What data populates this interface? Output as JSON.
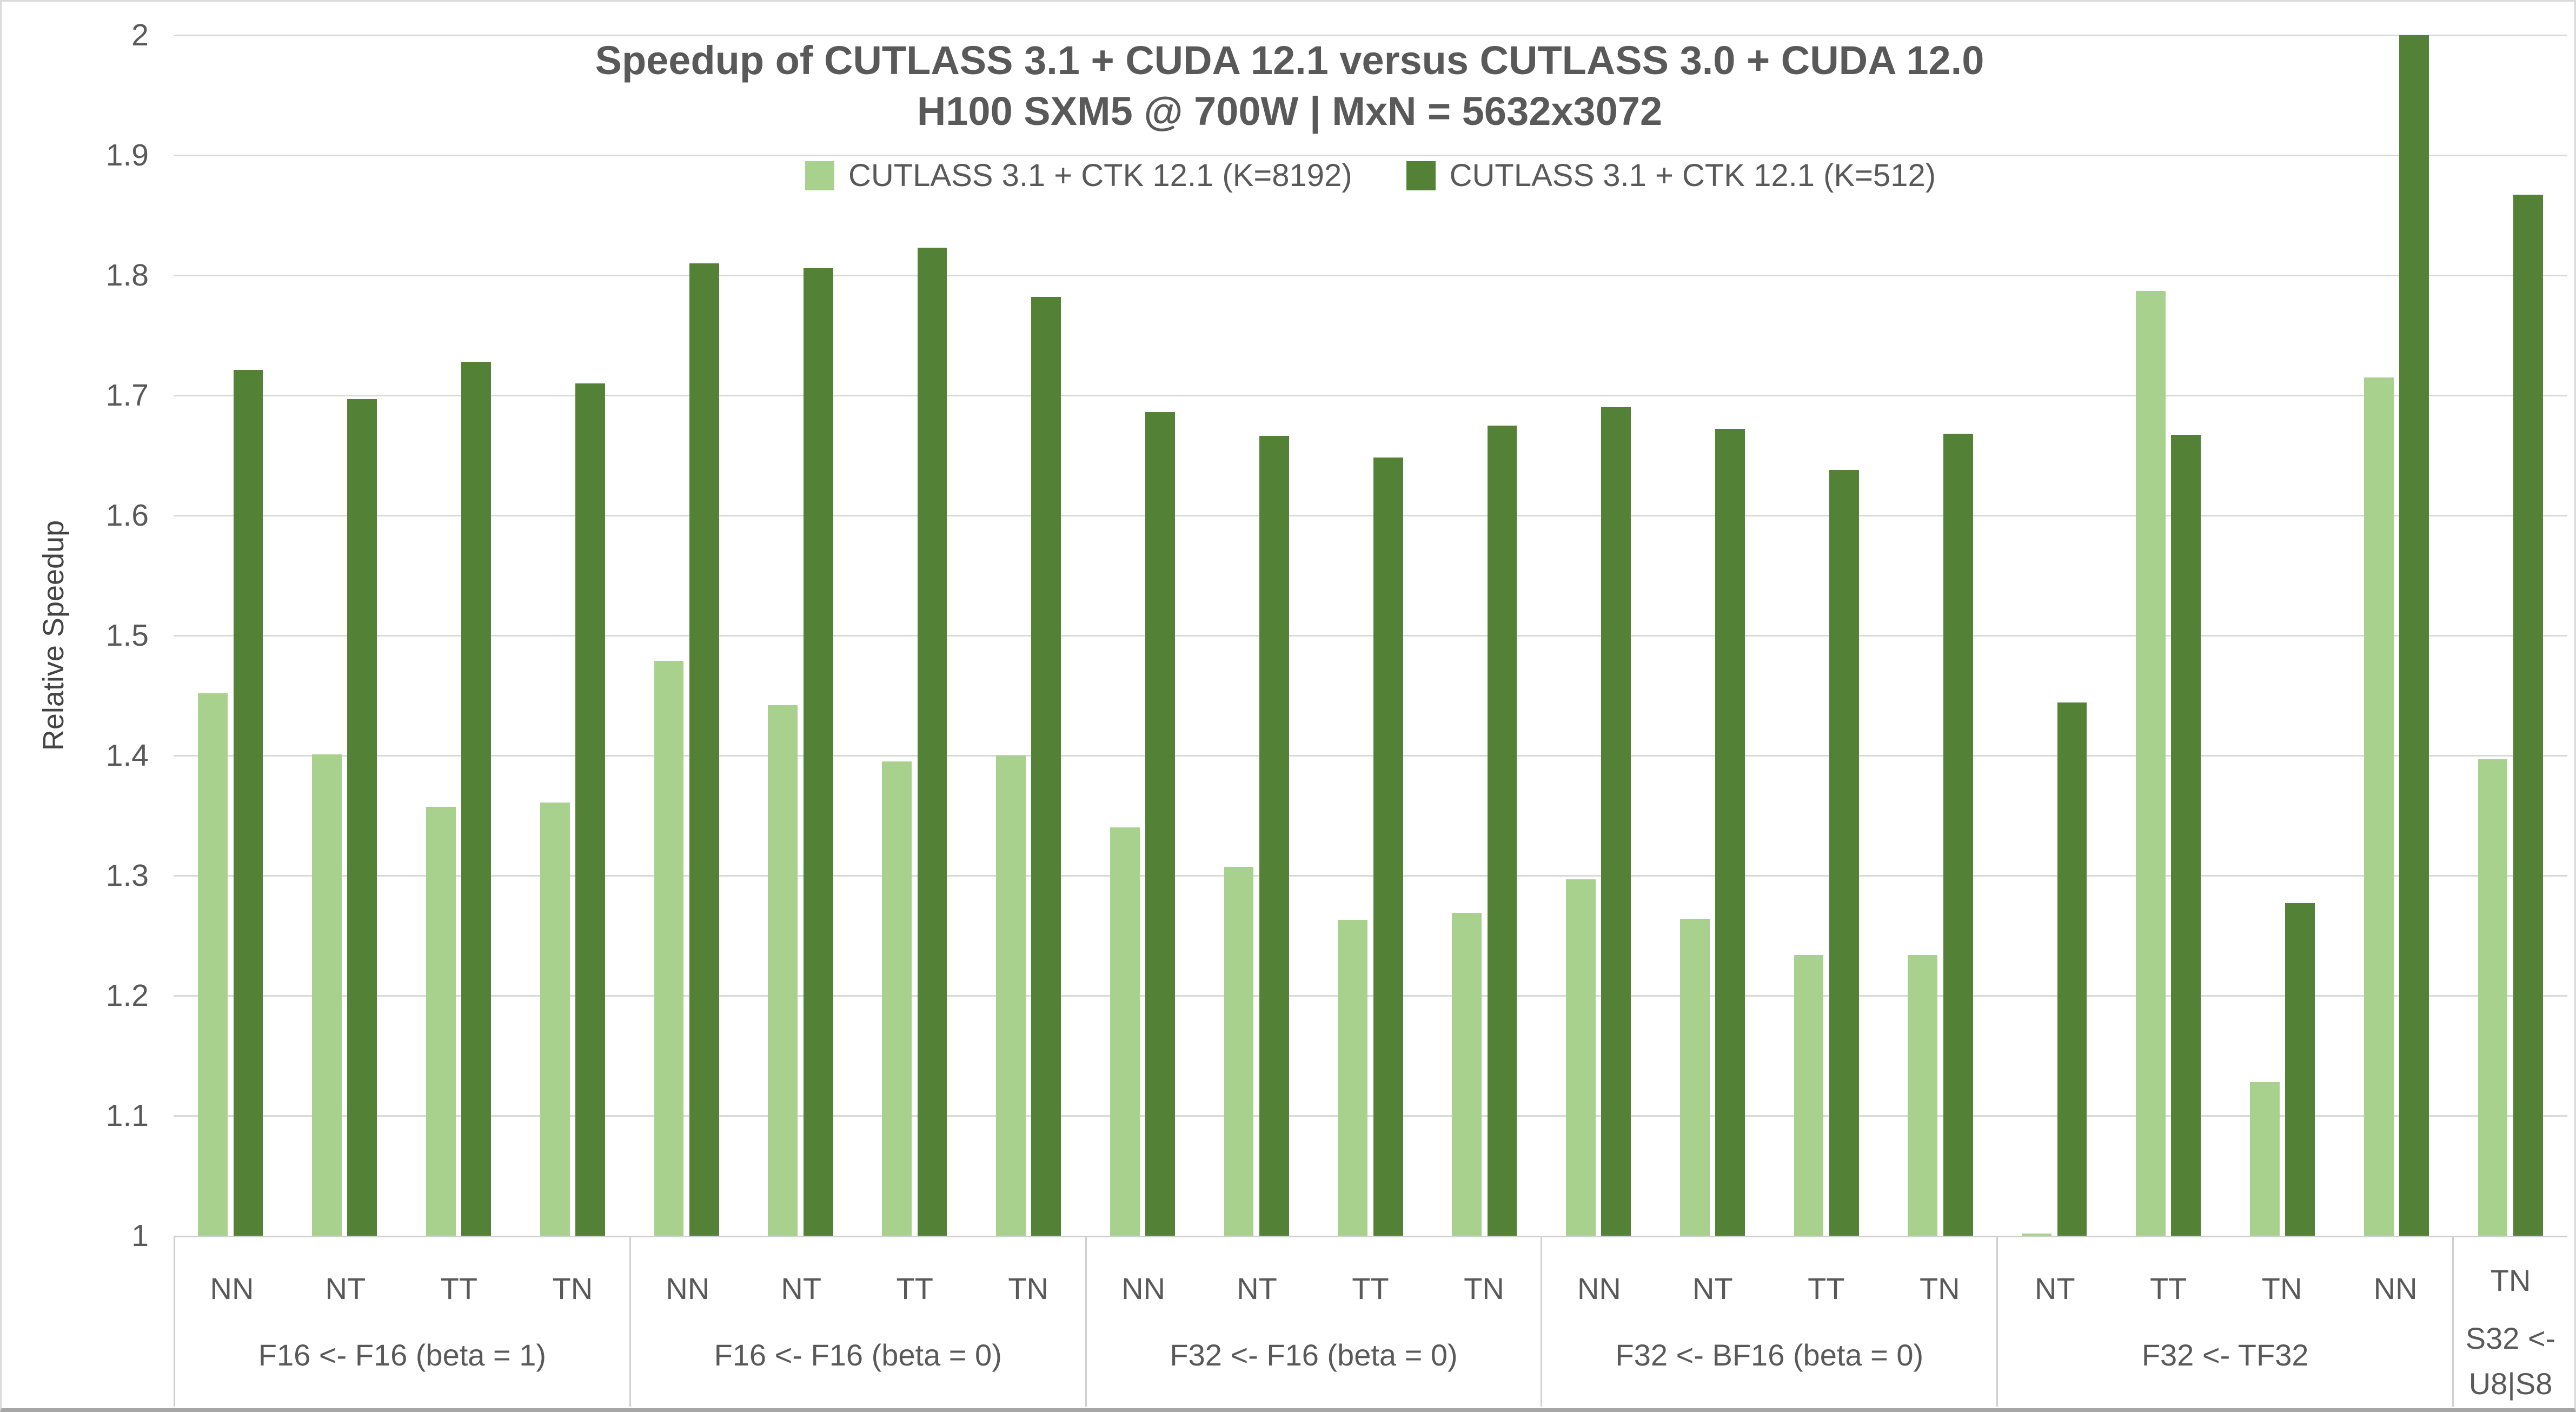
{
  "chart_data": {
    "type": "bar",
    "title": "Speedup of CUTLASS 3.1 + CUDA 12.1 versus CUTLASS 3.0 + CUDA 12.0",
    "subtitle": "H100 SXM5 @ 700W | MxN = 5632x3072",
    "ylabel": "Relative Speedup",
    "ylim": [
      1,
      2
    ],
    "ytick_labels": [
      "1",
      "1.1",
      "1.2",
      "1.3",
      "1.4",
      "1.5",
      "1.6",
      "1.7",
      "1.8",
      "1.9",
      "2"
    ],
    "grid": "horizontal",
    "legend_position": "top-center",
    "series": [
      {
        "name": "CUTLASS 3.1 + CTK 12.1 (K=8192)",
        "color": "#a9d18e"
      },
      {
        "name": "CUTLASS 3.1 + CTK 12.1 (K=512)",
        "color": "#538135"
      }
    ],
    "groups": [
      {
        "label_lines": [
          "F16 <- F16 (beta = 1)"
        ],
        "categories": [
          "NN",
          "NT",
          "TT",
          "TN"
        ],
        "values_k8192": [
          1.452,
          1.401,
          1.357,
          1.361
        ],
        "values_k512": [
          1.721,
          1.697,
          1.728,
          1.71
        ]
      },
      {
        "label_lines": [
          "F16 <- F16 (beta = 0)"
        ],
        "categories": [
          "NN",
          "NT",
          "TT",
          "TN"
        ],
        "values_k8192": [
          1.479,
          1.442,
          1.395,
          1.4
        ],
        "values_k512": [
          1.81,
          1.806,
          1.823,
          1.782
        ]
      },
      {
        "label_lines": [
          "F32 <- F16 (beta = 0)"
        ],
        "categories": [
          "NN",
          "NT",
          "TT",
          "TN"
        ],
        "values_k8192": [
          1.34,
          1.307,
          1.263,
          1.269
        ],
        "values_k512": [
          1.686,
          1.666,
          1.648,
          1.675
        ]
      },
      {
        "label_lines": [
          "F32 <- BF16 (beta = 0)"
        ],
        "categories": [
          "NN",
          "NT",
          "TT",
          "TN"
        ],
        "values_k8192": [
          1.297,
          1.264,
          1.234,
          1.234
        ],
        "values_k512": [
          1.69,
          1.672,
          1.638,
          1.668
        ]
      },
      {
        "label_lines": [
          "F32 <- TF32"
        ],
        "categories": [
          "NT",
          "TT",
          "TN",
          "NN"
        ],
        "values_k8192": [
          1.002,
          1.787,
          1.128,
          1.715
        ],
        "values_k512": [
          1.444,
          1.667,
          1.277,
          2.0
        ]
      },
      {
        "label_lines": [
          "S32 <-",
          "U8|S8"
        ],
        "categories": [
          "TN"
        ],
        "values_k8192": [
          1.397
        ],
        "values_k512": [
          1.867
        ]
      }
    ]
  },
  "colors": {
    "series_light": "#a9d18e",
    "series_dark": "#538135",
    "text": "#595959",
    "gridline": "#d9d9d9",
    "axis_line": "#d0d0d0",
    "chart_border": "#d9d9d9",
    "bottom_border": "#a6a6a6"
  }
}
